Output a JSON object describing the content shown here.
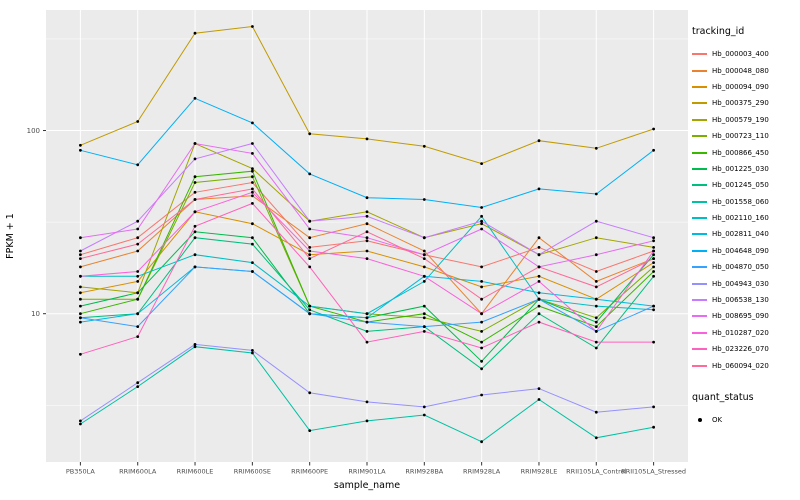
{
  "chart_data": {
    "type": "line",
    "title": "",
    "xlabel": "sample_name",
    "ylabel": "FPKM + 1",
    "y_scale": "log10",
    "y_ticks": [
      10,
      100
    ],
    "y_minor_ticks": [
      3.162,
      31.62,
      316.2
    ],
    "ylim": [
      1.55,
      455
    ],
    "grid": true,
    "panel_bg": "#EBEBEB",
    "grid_color": "#FFFFFF",
    "tick_label_color": "#4D4D4D",
    "point_color": "#000000",
    "legend_position": "right",
    "legend_title": "tracking_id",
    "quant_legend": {
      "title": "quant_status",
      "items": [
        {
          "label": "OK",
          "marker": "point",
          "color": "#000000"
        }
      ]
    },
    "x_categories": [
      "PB350LA",
      "RRIM600LA",
      "RRIM600LE",
      "RRIM600SE",
      "RRIM600PE",
      "RRIM901LA",
      "RRIM928BA",
      "RRIM928LA",
      "RRIM928LE",
      "RRII105LA_Control",
      "RRII105LA_Stressed"
    ],
    "series": [
      {
        "name": "Hb_000003_400",
        "color": "#F8766D",
        "values": [
          21,
          26,
          46,
          52,
          23,
          25,
          21,
          18,
          23,
          17,
          22
        ]
      },
      {
        "name": "Hb_000048_080",
        "color": "#EA8331",
        "values": [
          18,
          22,
          42,
          44,
          26,
          31,
          22,
          10,
          26,
          15,
          20
        ]
      },
      {
        "name": "Hb_000094_090",
        "color": "#D89000",
        "values": [
          13,
          15,
          36,
          31,
          21,
          22,
          18,
          14,
          16,
          12,
          19
        ]
      },
      {
        "name": "Hb_000375_290",
        "color": "#C09B00",
        "values": [
          83,
          112,
          340,
          370,
          96,
          90,
          82,
          66,
          88,
          80,
          102
        ]
      },
      {
        "name": "Hb_000579_190",
        "color": "#A3A500",
        "values": [
          14,
          13,
          85,
          62,
          32,
          36,
          26,
          31,
          21,
          26,
          23
        ]
      },
      {
        "name": "Hb_000723_110",
        "color": "#7CAE00",
        "values": [
          12,
          12,
          52,
          56,
          11,
          10,
          9.5,
          8,
          12,
          9.5,
          18
        ]
      },
      {
        "name": "Hb_000866_450",
        "color": "#39B600",
        "values": [
          10,
          12,
          56,
          60,
          11,
          9,
          10,
          7,
          11,
          8.5,
          17
        ]
      },
      {
        "name": "Hb_001225_030",
        "color": "#00BB4E",
        "values": [
          11,
          13,
          28,
          26,
          10,
          9.5,
          11,
          5.5,
          12,
          9,
          21
        ]
      },
      {
        "name": "Hb_001245_050",
        "color": "#00BF7D",
        "values": [
          9.5,
          10,
          26,
          24,
          10.5,
          8,
          8.5,
          5,
          10,
          6.5,
          16
        ]
      },
      {
        "name": "Hb_001558_060",
        "color": "#00C1A3",
        "values": [
          2.5,
          4.0,
          6.6,
          6.1,
          2.3,
          2.6,
          2.8,
          2.0,
          3.4,
          2.1,
          2.4
        ]
      },
      {
        "name": "Hb_002110_160",
        "color": "#00BFC4",
        "values": [
          16,
          16,
          21,
          19,
          11,
          10,
          15,
          34,
          12,
          11,
          10.5
        ]
      },
      {
        "name": "Hb_002811_040",
        "color": "#00BAE0",
        "values": [
          9,
          10,
          18,
          17,
          10,
          9.5,
          16,
          15,
          13,
          12,
          11
        ]
      },
      {
        "name": "Hb_004648_090",
        "color": "#00B0F6",
        "values": [
          78,
          65,
          150,
          110,
          58,
          43,
          42,
          38,
          48,
          45,
          78
        ]
      },
      {
        "name": "Hb_004870_050",
        "color": "#35A2FF",
        "values": [
          9.5,
          8.5,
          18,
          17,
          10,
          9,
          8.5,
          9,
          12,
          8,
          11
        ]
      },
      {
        "name": "Hb_004943_030",
        "color": "#9590FF",
        "values": [
          2.6,
          4.2,
          6.8,
          6.3,
          3.7,
          3.3,
          3.1,
          3.6,
          3.9,
          2.9,
          3.1
        ]
      },
      {
        "name": "Hb_006538_130",
        "color": "#C77CFF",
        "values": [
          22,
          32,
          70,
          85,
          32,
          34,
          26,
          32,
          21,
          32,
          26
        ]
      },
      {
        "name": "Hb_008695_090",
        "color": "#E76BF3",
        "values": [
          26,
          29,
          85,
          75,
          29,
          26,
          21,
          29,
          18,
          21,
          25
        ]
      },
      {
        "name": "Hb_010287_020",
        "color": "#FA62DB",
        "values": [
          16,
          17,
          36,
          46,
          22,
          20,
          16,
          10,
          15,
          8,
          22
        ]
      },
      {
        "name": "Hb_023226_070",
        "color": "#FF62BC",
        "values": [
          6,
          7.5,
          30,
          40,
          18,
          7,
          8,
          6.5,
          9,
          7,
          7
        ]
      },
      {
        "name": "Hb_060094_020",
        "color": "#FF6A98",
        "values": [
          20,
          24,
          42,
          48,
          20,
          28,
          20,
          12,
          18,
          14,
          20
        ]
      }
    ]
  }
}
